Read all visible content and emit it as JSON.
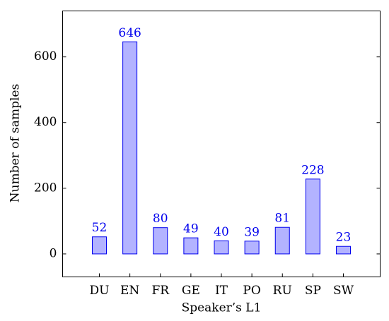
{
  "chart_data": {
    "type": "bar",
    "x_label": "Speaker’s L1",
    "y_label": "Number of samples",
    "categories": [
      "DU",
      "EN",
      "FR",
      "GE",
      "IT",
      "PO",
      "RU",
      "SP",
      "SW"
    ],
    "values": [
      52,
      646,
      80,
      49,
      40,
      39,
      81,
      228,
      23
    ],
    "color": "#b3b3ff",
    "edge_color": "#0000ee",
    "label_color": "#0000ee",
    "ylim": [
      -70,
      740
    ],
    "yticks": [
      0,
      200,
      400,
      600
    ],
    "grid": false
  }
}
